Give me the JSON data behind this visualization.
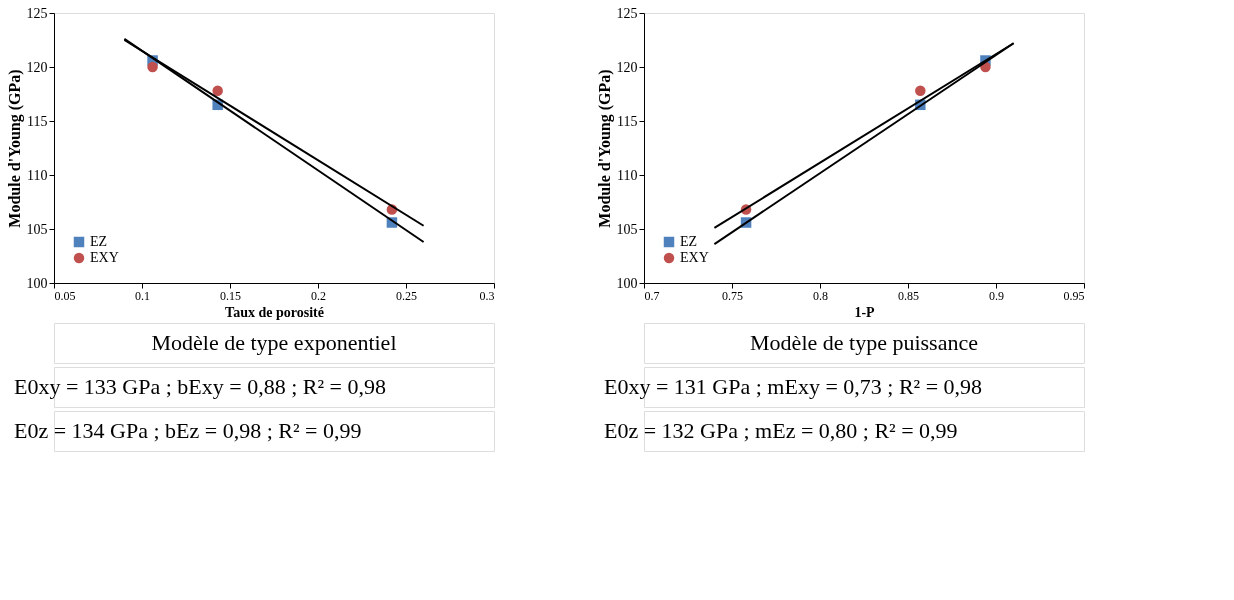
{
  "chart_data": [
    {
      "type": "scatter",
      "xlabel": "Taux de porosité",
      "ylabel": "Module d'Young (GPa)",
      "xlim": [
        0.05,
        0.3
      ],
      "xticks": [
        0.05,
        0.1,
        0.15,
        0.2,
        0.25,
        0.3
      ],
      "ylim": [
        100,
        125
      ],
      "yticks": [
        100,
        105,
        110,
        115,
        120,
        125
      ],
      "grid": false,
      "legend": "bottom left",
      "series": [
        {
          "name": "EZ",
          "color": "#4f81bd",
          "marker": "square",
          "x": [
            0.106,
            0.143,
            0.242
          ],
          "values": [
            120.6,
            116.5,
            105.6
          ]
        },
        {
          "name": "EXY",
          "color": "#c0504d",
          "marker": "circle",
          "x": [
            0.106,
            0.143,
            0.242
          ],
          "values": [
            120.0,
            117.8,
            106.8
          ]
        },
        {
          "type": "line",
          "color": "#000000",
          "x": [
            0.09,
            0.26
          ],
          "values": [
            122.5,
            105.3
          ]
        },
        {
          "type": "line",
          "color": "#000000",
          "x": [
            0.09,
            0.26
          ],
          "values": [
            122.6,
            103.8
          ]
        }
      ],
      "annotations": [
        "Modèle de type exponentiel",
        "E0xy = 133 GPa ; bExy = 0,88 ; R² = 0,98",
        "E0z = 134 GPa ; bEz = 0,98 ; R² = 0,99"
      ]
    },
    {
      "type": "scatter",
      "xlabel": "1-P",
      "ylabel": "Module d'Young (GPa)",
      "xlim": [
        0.7,
        0.95
      ],
      "xticks": [
        0.7,
        0.75,
        0.8,
        0.85,
        0.9,
        0.95
      ],
      "ylim": [
        100,
        125
      ],
      "yticks": [
        100,
        105,
        110,
        115,
        120,
        125
      ],
      "grid": false,
      "legend": "bottom left",
      "series": [
        {
          "name": "EZ",
          "color": "#4f81bd",
          "marker": "square",
          "x": [
            0.758,
            0.857,
            0.894
          ],
          "values": [
            105.6,
            116.5,
            120.6
          ]
        },
        {
          "name": "EXY",
          "color": "#c0504d",
          "marker": "circle",
          "x": [
            0.758,
            0.857,
            0.894
          ],
          "values": [
            106.8,
            117.8,
            120.0
          ]
        },
        {
          "type": "line",
          "color": "#000000",
          "x": [
            0.74,
            0.91
          ],
          "values": [
            105.1,
            122.2
          ]
        },
        {
          "type": "line",
          "color": "#000000",
          "x": [
            0.74,
            0.91
          ],
          "values": [
            103.6,
            122.2
          ]
        }
      ],
      "annotations": [
        "Modèle de type puissance",
        "E0xy = 131 GPa ; mExy = 0,73 ; R² = 0,98",
        "E0z = 132 GPa ; mEz = 0,80 ; R² = 0,99"
      ]
    }
  ]
}
